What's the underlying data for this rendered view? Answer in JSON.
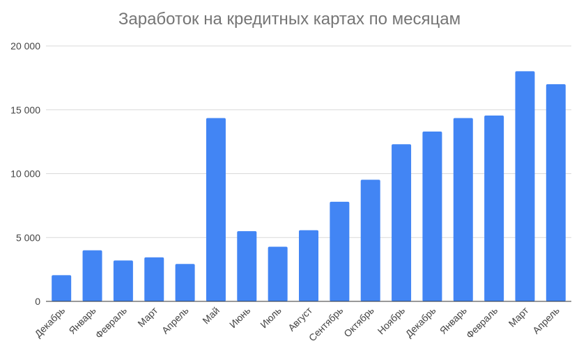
{
  "chart_data": {
    "type": "bar",
    "title": "Заработок на кредитных картах по месяцам",
    "xlabel": "",
    "ylabel": "",
    "categories": [
      "Декабрь",
      "Январь",
      "Февраль",
      "Март",
      "Апрель",
      "Май",
      "Июнь",
      "Июль",
      "Август",
      "Сентябрь",
      "Октябрь",
      "Ноябрь",
      "Декабрь",
      "Январь",
      "Февраль",
      "Март",
      "Апрель"
    ],
    "values": [
      2050,
      4000,
      3200,
      3450,
      2930,
      14350,
      5500,
      4280,
      5570,
      7800,
      9520,
      12300,
      13300,
      14350,
      14550,
      18020,
      17000
    ],
    "ylim": [
      0,
      20000
    ],
    "yticks": [
      0,
      5000,
      10000,
      15000,
      20000
    ],
    "ytick_labels": [
      "0",
      "5 000",
      "10 000",
      "15 000",
      "20 000"
    ],
    "grid": true,
    "legend": "none",
    "colors": {
      "bar": "#4285f4",
      "grid": "#d9d9d9",
      "axis": "#333333",
      "title": "#757575",
      "label": "#444444"
    }
  }
}
